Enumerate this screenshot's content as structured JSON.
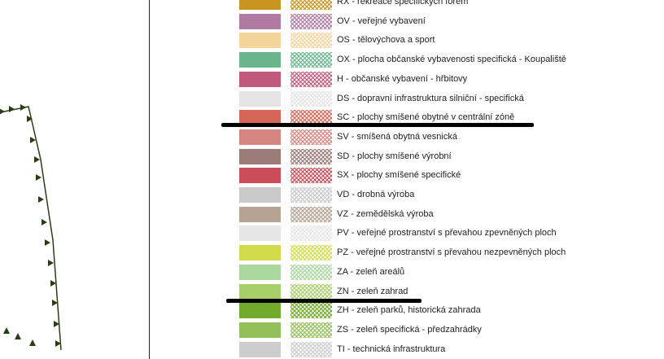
{
  "legend": {
    "items": [
      {
        "label": "RX - rekreace specifických forem",
        "color": "#c9941f"
      },
      {
        "label": "OV - veřejné vybavení",
        "color": "#b07aa3"
      },
      {
        "label": "OS - tělovýchova a sport",
        "color": "#f3d49a"
      },
      {
        "label": "OX - plocha občanské vybavenosti specifická - Koupaliště",
        "color": "#6ab58c"
      },
      {
        "label": "H - občanské vybavení - hřbitovy",
        "color": "#c05a7d"
      },
      {
        "label": "DS - dopravní infrastruktura silniční - specifická",
        "color": "#e4e4e4"
      },
      {
        "label": "SC - plochy smíšené  obytné v centrální zóně",
        "color": "#d66657"
      },
      {
        "label": "SV - smíšená obytná vesnická",
        "color": "#d58580"
      },
      {
        "label": "SD - plochy smíšené výrobní",
        "color": "#9c7a77"
      },
      {
        "label": "SX - plochy smíšené specifické",
        "color": "#cc4d5a"
      },
      {
        "label": "VD - drobná výroba",
        "color": "#c9c9c9"
      },
      {
        "label": "VZ - zemědělská výroba",
        "color": "#b6a393"
      },
      {
        "label": "PV - veřejné prostranství s převahou zpevněných ploch",
        "color": "#e6e6e6"
      },
      {
        "label": "PZ - veřejné prostranství s převahou nezpevněných ploch",
        "color": "#d2dc4a"
      },
      {
        "label": "ZA - zeleň areálů",
        "color": "#a9d79e"
      },
      {
        "label": "ZN - zeleň zahrad",
        "color": "#a8d06a"
      },
      {
        "label": "ZH - zeleň parků, historická zahrada",
        "color": "#72ab2c"
      },
      {
        "label": "ZS - zeleň specifická - předzahrádky",
        "color": "#94c05a"
      },
      {
        "label": "TI - technická infrastruktura",
        "color": "#cdcdcd"
      }
    ]
  },
  "colors": {
    "boundary_line": "#2a3d12",
    "underline": "#000000"
  }
}
